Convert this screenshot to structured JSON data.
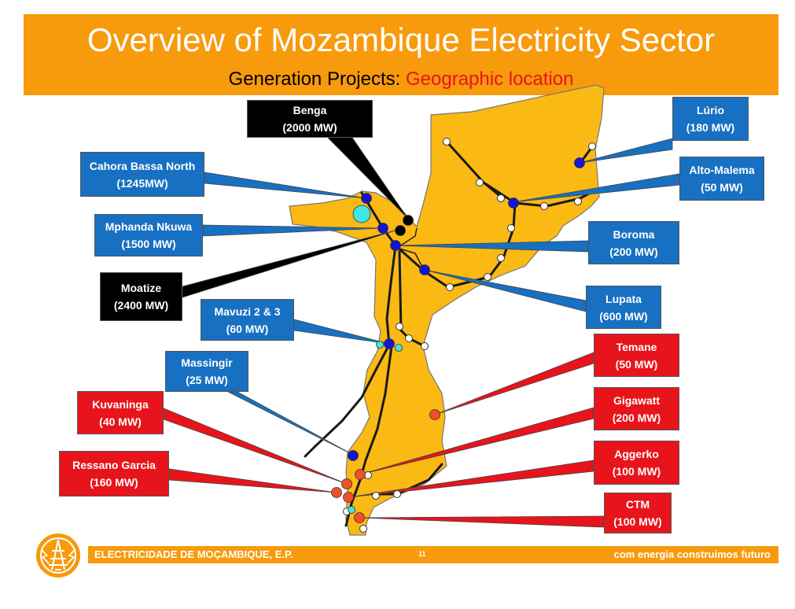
{
  "header": {
    "title": "Overview of Mozambique Electricity Sector",
    "subtitle_prefix": "Generation Projects: ",
    "subtitle_accent": "Geographic location"
  },
  "colors": {
    "orange": "#f79a0c",
    "map_fill": "#fbb913",
    "hydro": "#1770c2",
    "coal": "#000000",
    "gas": "#e8141b",
    "hydro_dot": "#1414d2",
    "existing_dot": "#3ee6e6",
    "gas_dot": "#f0502a"
  },
  "callouts": [
    {
      "id": "benga",
      "type": "coal",
      "name": "Benga",
      "capacity": "(2000 MW)"
    },
    {
      "id": "lurio",
      "type": "hydro",
      "name": "Lúrio",
      "capacity": "(180 MW)"
    },
    {
      "id": "cahora-bassa-north",
      "type": "hydro",
      "name": "Cahora Bassa North",
      "capacity": "(1245MW)"
    },
    {
      "id": "alto-malema",
      "type": "hydro",
      "name": "Alto-Malema",
      "capacity": "(50 MW)"
    },
    {
      "id": "mphanda-nkuwa",
      "type": "hydro",
      "name": "Mphanda Nkuwa",
      "capacity": "(1500 MW)"
    },
    {
      "id": "boroma",
      "type": "hydro",
      "name": "Boroma",
      "capacity": "(200 MW)"
    },
    {
      "id": "moatize",
      "type": "coal",
      "name": "Moatize",
      "capacity": "(2400 MW)"
    },
    {
      "id": "mavuzi",
      "type": "hydro",
      "name": "Mavuzi 2 & 3",
      "capacity": "(60 MW)"
    },
    {
      "id": "lupata",
      "type": "hydro",
      "name": "Lupata",
      "capacity": "(600 MW)"
    },
    {
      "id": "temane",
      "type": "gas",
      "name": "Temane",
      "capacity": "(50 MW)"
    },
    {
      "id": "massingir",
      "type": "hydro",
      "name": "Massingir",
      "capacity": "(25 MW)"
    },
    {
      "id": "kuvaninga",
      "type": "gas",
      "name": "Kuvaninga",
      "capacity": "(40 MW)"
    },
    {
      "id": "gigawatt",
      "type": "gas",
      "name": "Gigawatt",
      "capacity": "(200 MW)"
    },
    {
      "id": "ressano-garcia",
      "type": "gas",
      "name": "Ressano Garcia",
      "capacity": "(160 MW)"
    },
    {
      "id": "aggerko",
      "type": "gas",
      "name": "Aggerko",
      "capacity": "(100 MW)"
    },
    {
      "id": "ctm",
      "type": "gas",
      "name": "CTM",
      "capacity": "(100 MW)"
    }
  ],
  "footer": {
    "company": "ELECTRICIDADE DE MOÇAMBIQUE, E.P.",
    "page": "11",
    "slogan": "com energia construimos futuro"
  }
}
